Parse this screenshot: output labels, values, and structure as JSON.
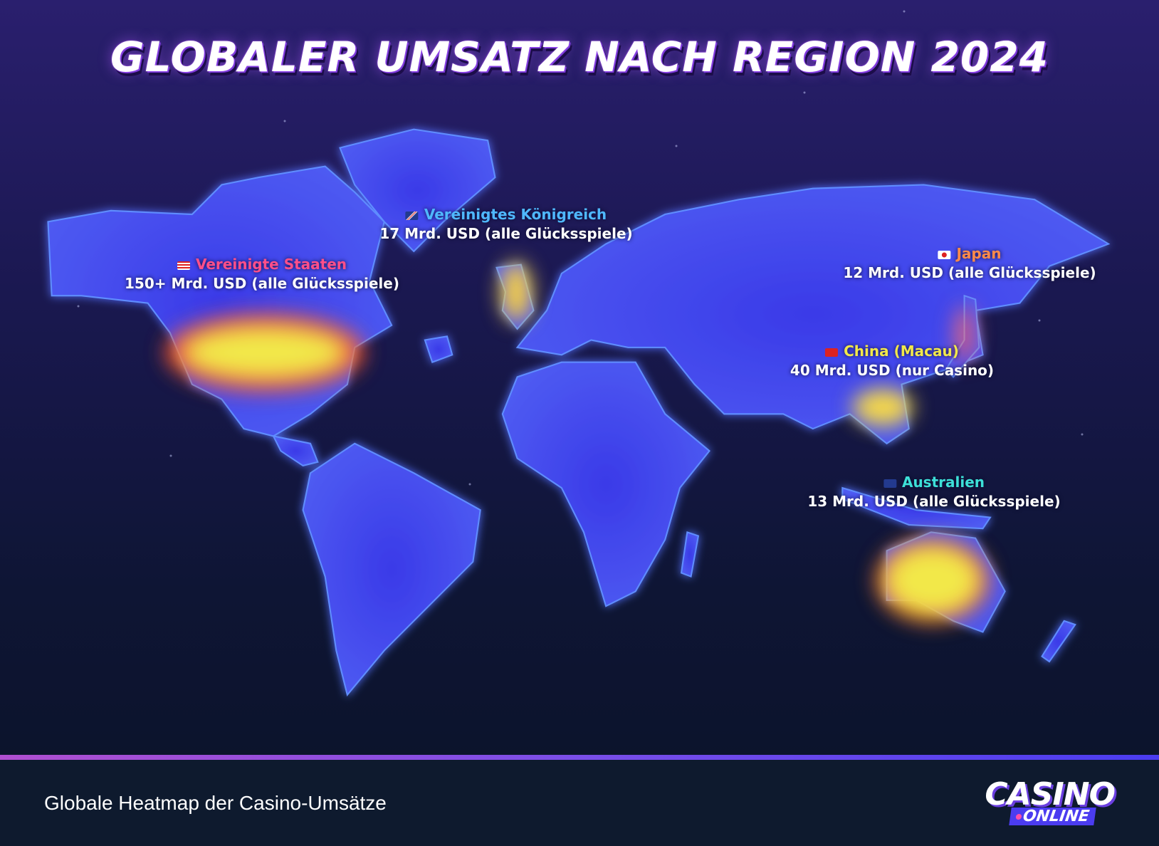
{
  "title": "GLOBALER UMSATZ NACH REGION 2024",
  "regions": [
    {
      "name": "Vereinigtes Königreich",
      "value": "17 Mrd. USD (alle Glücksspiele)"
    },
    {
      "name": "Vereinigte Staaten",
      "value": "150+ Mrd. USD (alle Glücksspiele)"
    },
    {
      "name": "Japan",
      "value": "12 Mrd. USD (alle Glücksspiele)"
    },
    {
      "name": "China (Macau)",
      "value": "40 Mrd. USD (nur Casino)"
    },
    {
      "name": "Australien",
      "value": "13 Mrd. USD (alle Glücksspiele)"
    }
  ],
  "footer": {
    "caption": "Globale Heatmap der Casino-Umsätze",
    "logo": {
      "main": "CASINO",
      "sub": "ONLINE"
    }
  }
}
